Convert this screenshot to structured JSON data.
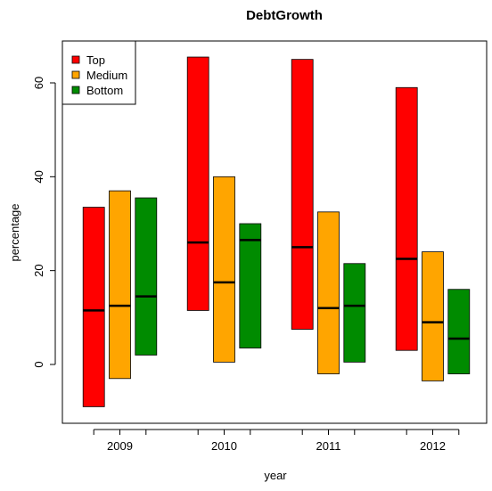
{
  "chart_data": {
    "type": "bar",
    "title": "DebtGrowth",
    "xlabel": "year",
    "ylabel": "percentage",
    "categories": [
      "2009",
      "2010",
      "2011",
      "2012"
    ],
    "ylim": [
      -12,
      68
    ],
    "yticks": [
      0,
      20,
      40,
      60
    ],
    "grid": false,
    "legend_position": "top-left",
    "series": [
      {
        "name": "Top",
        "color": "#ff0000",
        "low": [
          -9,
          11.5,
          7.5,
          3
        ],
        "high": [
          33.5,
          65.5,
          65,
          59
        ],
        "median": [
          11.5,
          26,
          25,
          22.5
        ]
      },
      {
        "name": "Medium",
        "color": "#ffa500",
        "low": [
          -3,
          0.5,
          -2,
          -3.5
        ],
        "high": [
          37,
          40,
          32.5,
          24
        ],
        "median": [
          12.5,
          17.5,
          12,
          9
        ]
      },
      {
        "name": "Bottom",
        "color": "#008b00",
        "low": [
          2,
          3.5,
          0.5,
          -2
        ],
        "high": [
          35.5,
          30,
          21.5,
          16
        ],
        "median": [
          14.5,
          26.5,
          12.5,
          5.5
        ]
      }
    ]
  }
}
